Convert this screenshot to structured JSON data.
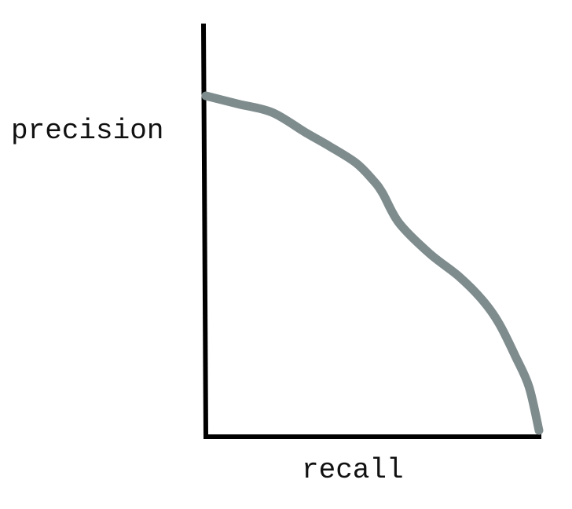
{
  "chart_data": {
    "type": "line",
    "title": "",
    "xlabel": "recall",
    "ylabel": "precision",
    "xlim": [
      0,
      1
    ],
    "ylim": [
      0,
      1
    ],
    "grid": false,
    "ticks": false,
    "series": [
      {
        "color": "#7f8c8d",
        "x": [
          0.0,
          0.04,
          0.1,
          0.2,
          0.3,
          0.37,
          0.45,
          0.5,
          0.53,
          0.58,
          0.67,
          0.76,
          0.83,
          0.88,
          0.93,
          0.97,
          1.0
        ],
        "y": [
          1.0,
          0.99,
          0.975,
          0.95,
          0.89,
          0.85,
          0.8,
          0.75,
          0.71,
          0.62,
          0.53,
          0.46,
          0.39,
          0.32,
          0.22,
          0.13,
          0.0
        ]
      }
    ]
  }
}
